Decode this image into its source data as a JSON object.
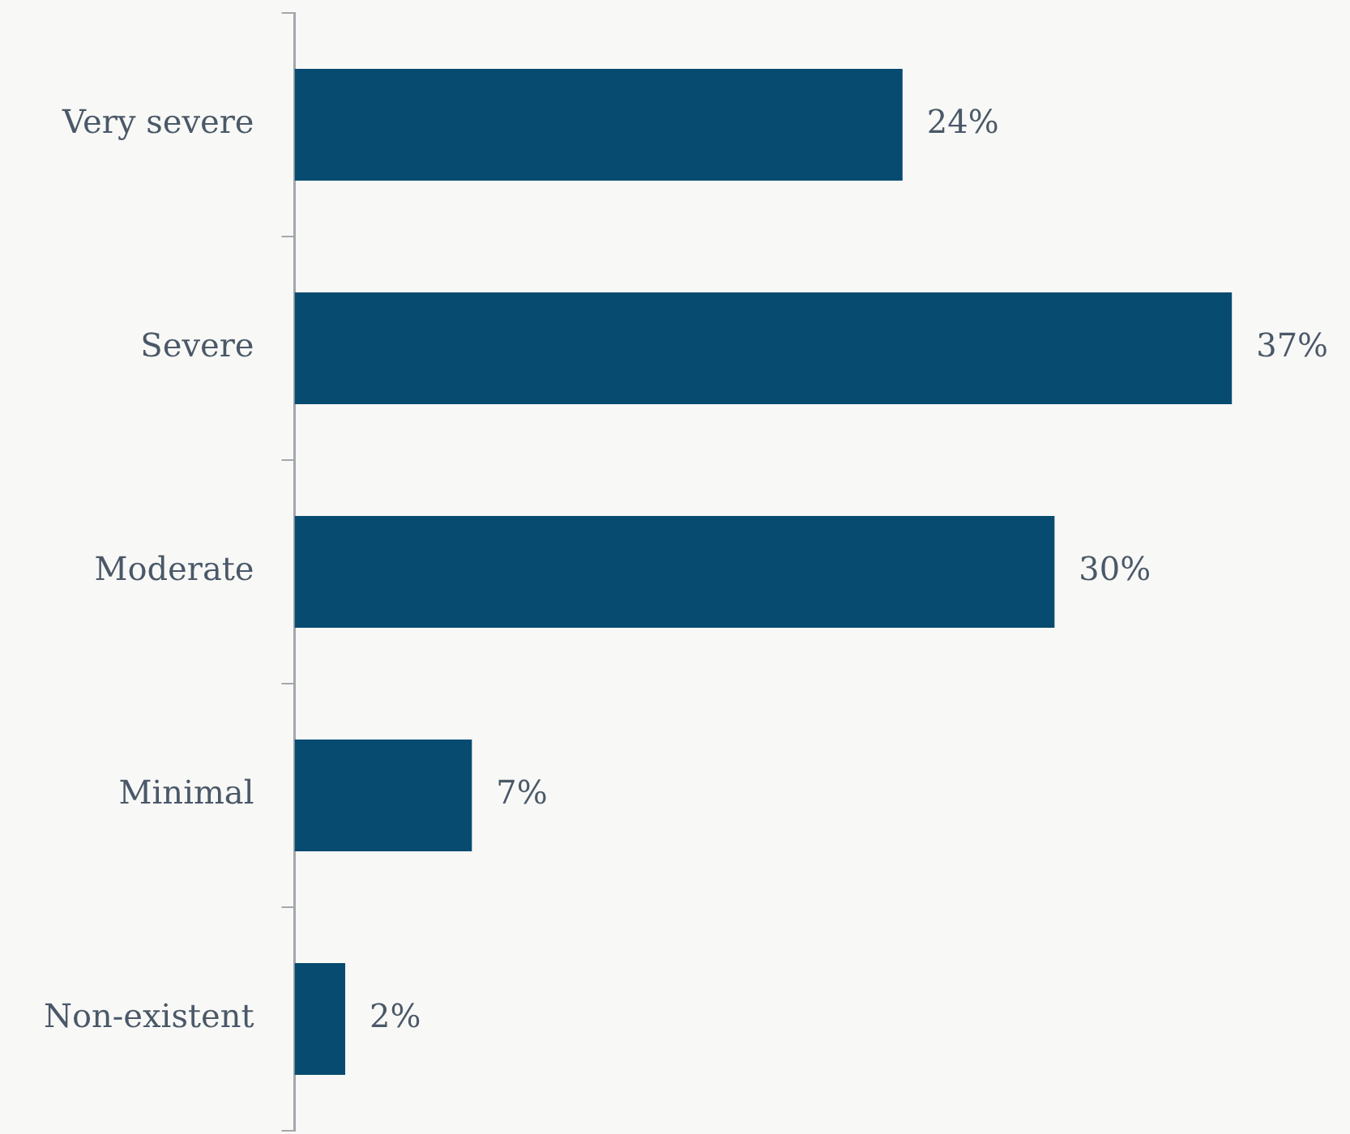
{
  "chart_data": {
    "type": "bar",
    "orientation": "horizontal",
    "categories": [
      "Very severe",
      "Severe",
      "Moderate",
      "Minimal",
      "Non-existent"
    ],
    "values": [
      24,
      37,
      30,
      7,
      2
    ],
    "color": "#074b71",
    "value_labels": [
      "24%",
      "37%",
      "30%",
      "7%",
      "2%"
    ],
    "tick_labels": "y",
    "grid": false,
    "legend": false
  }
}
